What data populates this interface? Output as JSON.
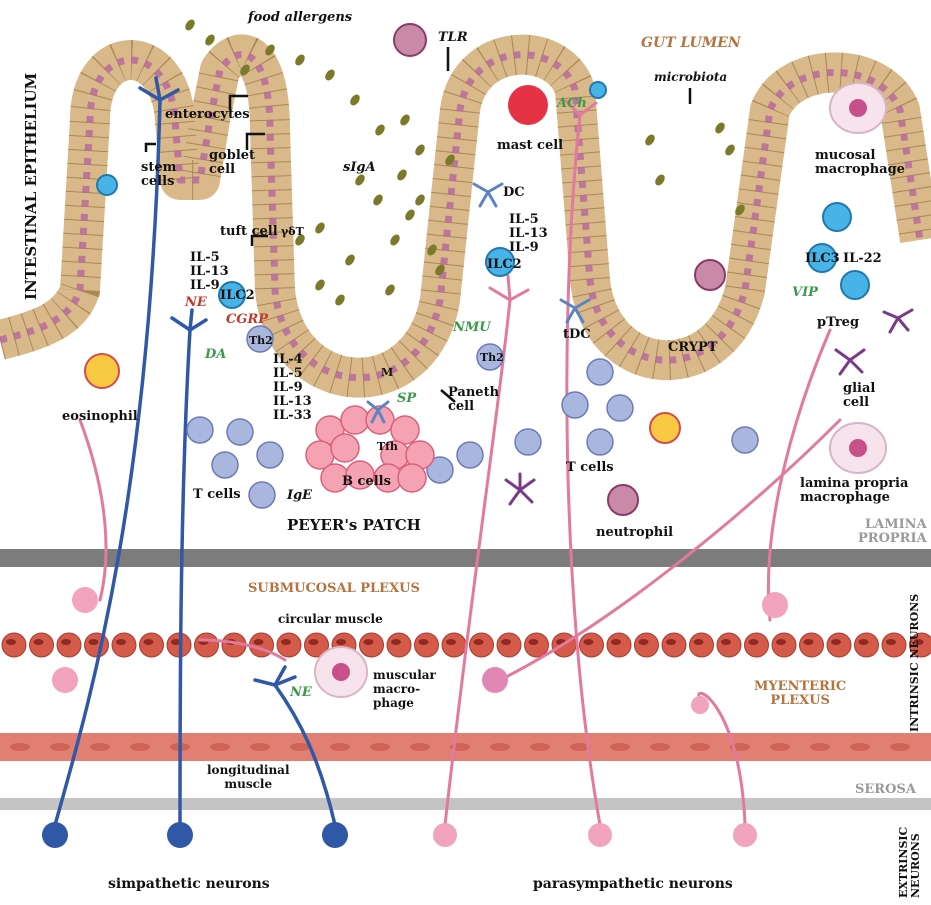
{
  "labels": {
    "food_allergens": "food allergens",
    "gut_lumen": "GUT LUMEN",
    "intestinal_epithelium": "INTESTINAL EPITHELIUM",
    "tlr": "TLR",
    "microbiota": "microbiota",
    "ach": "ACh",
    "mast_cell": "mast cell",
    "enterocytes": "enterocytes",
    "goblet_cell": "goblet\ncell",
    "stem_cells": "stem\ncells",
    "siga": "sIgA",
    "dc": "DC",
    "mucosal_macrophage": "mucosal\nmacrophage",
    "il_ilc2_right": "IL-5\nIL-13\nIL-9",
    "tuft_cell": "tuft cell",
    "gamma_delta_t": "γδT",
    "il_ilc2_left": "IL-5\nIL-13\nIL-9",
    "ilc2_left": "ILC2",
    "ilc2_right": "ILC2",
    "ilc3": "ILC3",
    "il22": "IL-22",
    "ne_top": "NE",
    "cgrp": "CGRP",
    "da": "DA",
    "th2_left": "Th2",
    "th2_right": "Th2",
    "nmu": "NMU",
    "tdc": "tDC",
    "vip": "VIP",
    "crypt": "CRYPT",
    "ptreg": "pTreg",
    "m_cell": "M",
    "il_peyer": "IL-4\nIL-5\nIL-9\nIL-13\nIL-33",
    "sp": "SP",
    "paneth_cell": "Paneth\ncell",
    "eosinophil": "eosinophil",
    "glial_cell": "glial\ncell",
    "tfh": "Tfh",
    "t_cells_left": "T cells",
    "b_cells": "B cells",
    "ige": "IgE",
    "t_cells_right": "T cells",
    "lamina_propria_macrophage": "lamina propria\nmacrophage",
    "peyers_patch": "PEYER's  PATCH",
    "neutrophil": "neutrophil",
    "lamina_propria": "LAMINA\nPROPRIA",
    "submucosal_plexus": "SUBMUCOSAL PLEXUS",
    "circular_muscle": "circular muscle",
    "intrinsic_neurons": "INTRINSIC NEURONS",
    "ne_bottom": "NE",
    "muscular_macrophage": "muscular\nmacro-\nphage",
    "myenteric_plexus": "MYENTERIC\nPLEXUS",
    "longitudinal_muscle": "longitudinal\nmuscle",
    "serosa": "SEROSA",
    "simpathetic_neurons": "simpathetic neurons",
    "parasympathetic_neurons": "parasympathetic neurons",
    "extrinsic_neurons": "EXTRINSIC\nNEURONS"
  },
  "colors": {
    "epithelium": "#d9b98a",
    "epithelium_edge": "#a98756",
    "sympathetic": "#2f58a6",
    "parasympathetic": "#e27a9e",
    "muscle_circular": "#d45a4a",
    "muscle_longitudinal": "#e07f72",
    "lamina_bar": "#7c7c7c",
    "serosa_bar": "#c4c4c4",
    "immune_cell": "#a9b6de",
    "allergen": "#7a7a2a"
  }
}
